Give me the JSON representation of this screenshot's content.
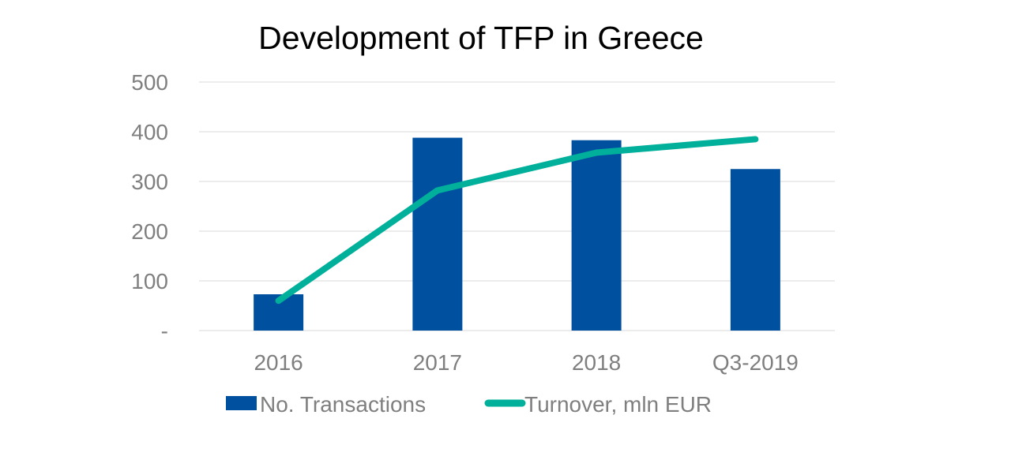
{
  "chart_data": {
    "type": "bar",
    "title": "Development of TFP in Greece",
    "categories": [
      "2016",
      "2017",
      "2018",
      "Q3-2019"
    ],
    "y_ticks": [
      "-",
      "100",
      "200",
      "300",
      "400",
      "500"
    ],
    "ylim": [
      0,
      500
    ],
    "grid": true,
    "legend_position": "bottom-left",
    "series": [
      {
        "name": "No. Transactions",
        "type": "bar",
        "color": "#0050a0",
        "values": [
          73,
          388,
          383,
          325
        ]
      },
      {
        "name": "Turnover, mln EUR",
        "type": "line",
        "color": "#00b09b",
        "values": [
          60,
          282,
          358,
          385
        ]
      }
    ]
  }
}
